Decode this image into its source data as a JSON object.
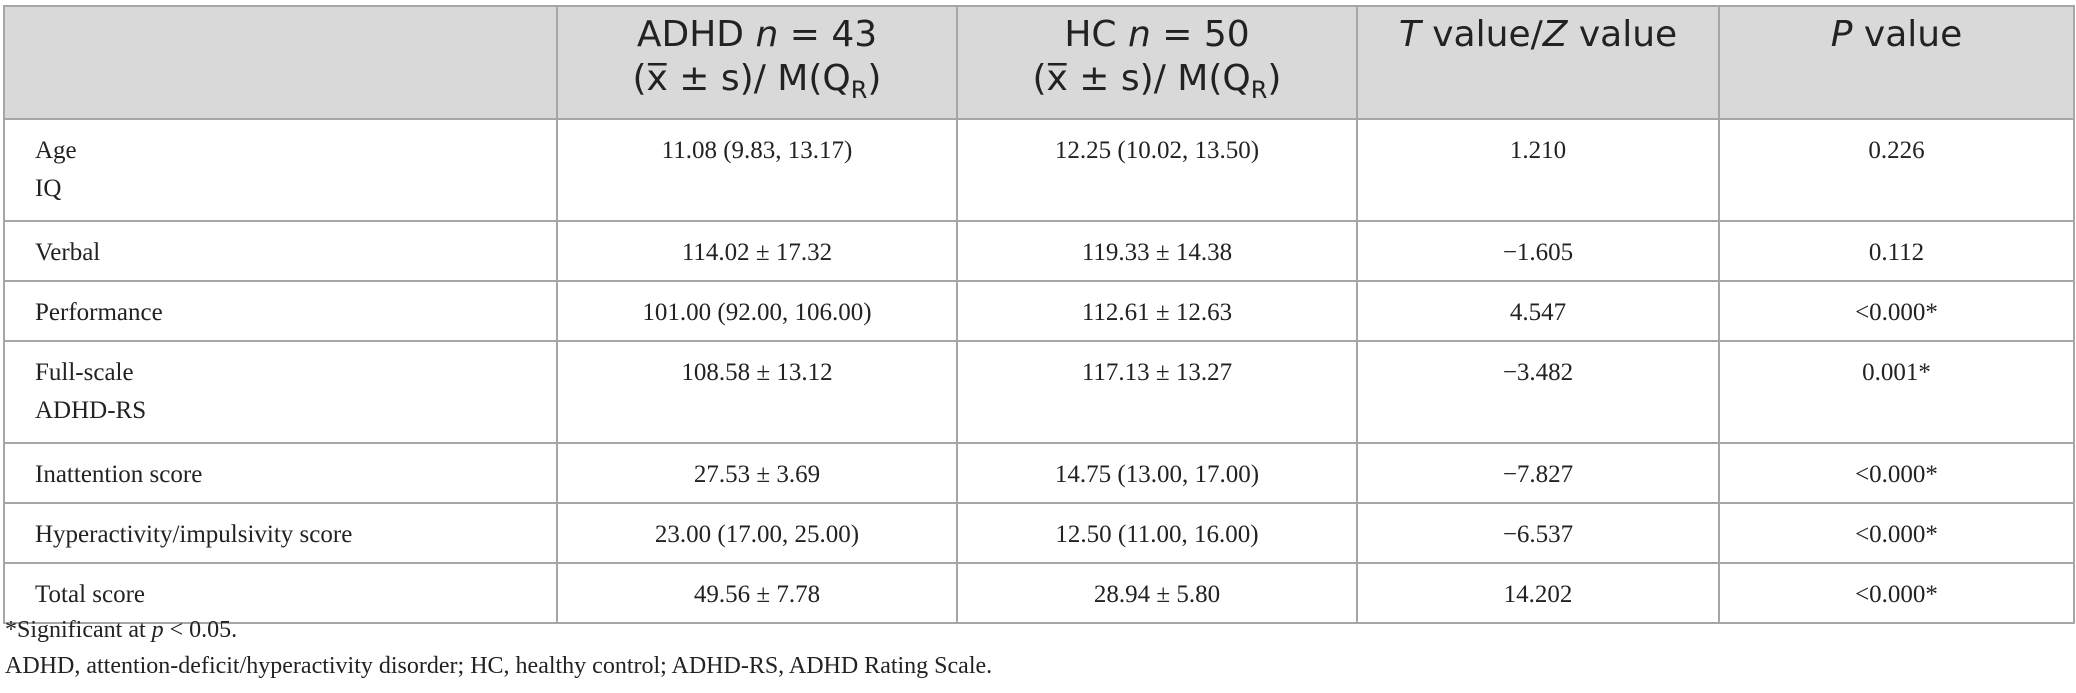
{
  "header": {
    "col0": "",
    "col1_line1_prefix": "ADHD ",
    "col1_line1_var": "n",
    "col1_line1_suffix": " = 43",
    "col1_line2": "(x̅ ± s)/ M(Q",
    "col1_line2_sub": "R",
    "col1_line2_end": ")",
    "col2_line1_prefix": "HC ",
    "col2_line1_var": "n",
    "col2_line1_suffix": " = 50",
    "col2_line2": "(x̅ ± s)/ M(Q",
    "col2_line2_sub": "R",
    "col2_line2_end": ")",
    "col3_var1": "T",
    "col3_mid": " value/",
    "col3_var2": "Z",
    "col3_end": " value",
    "col4_var": "P",
    "col4_end": " value"
  },
  "rows": [
    {
      "label": "Age",
      "label2": "IQ",
      "adhd": "11.08 (9.83, 13.17)",
      "hc": "12.25 (10.02, 13.50)",
      "stat": "1.210",
      "p": "0.226"
    },
    {
      "label": "Verbal",
      "label2": "",
      "adhd": "114.02 ± 17.32",
      "hc": "119.33 ± 14.38",
      "stat": "−1.605",
      "p": "0.112"
    },
    {
      "label": "Performance",
      "label2": "",
      "adhd": "101.00 (92.00, 106.00)",
      "hc": "112.61 ± 12.63",
      "stat": "4.547",
      "p": "<0.000*"
    },
    {
      "label": "Full-scale",
      "label2": "ADHD-RS",
      "adhd": "108.58 ± 13.12",
      "hc": "117.13 ± 13.27",
      "stat": "−3.482",
      "p": "0.001*"
    },
    {
      "label": "Inattention score",
      "label2": "",
      "adhd": "27.53 ± 3.69",
      "hc": "14.75 (13.00, 17.00)",
      "stat": "−7.827",
      "p": "<0.000*"
    },
    {
      "label": "Hyperactivity/impulsivity score",
      "label2": "",
      "adhd": "23.00 (17.00, 25.00)",
      "hc": "12.50 (11.00, 16.00)",
      "stat": "−6.537",
      "p": "<0.000*"
    },
    {
      "label": "Total score",
      "label2": "",
      "adhd": "49.56 ± 7.78",
      "hc": "28.94 ± 5.80",
      "stat": "14.202",
      "p": "<0.000*"
    }
  ],
  "footnotes": {
    "sig_prefix": "*Significant at ",
    "sig_var": "p",
    "sig_suffix": " < 0.05.",
    "abbrev": "ADHD, attention-deficit/hyperactivity disorder; HC, healthy control; ADHD-RS, ADHD Rating Scale."
  }
}
